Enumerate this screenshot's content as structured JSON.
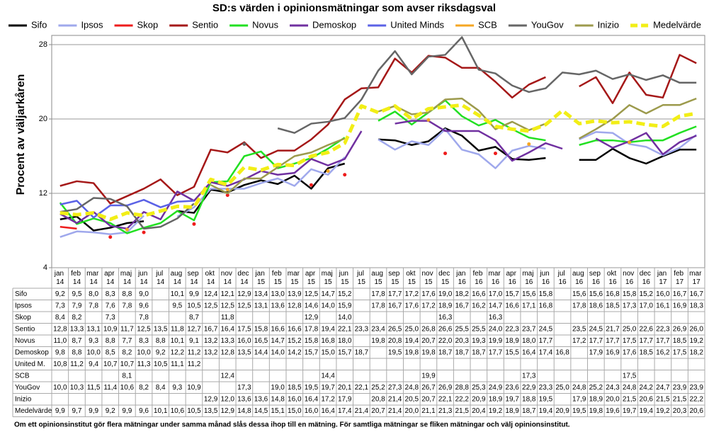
{
  "chart_data": {
    "type": "line",
    "title": "SD:s värden i opinionsmätningar som avser riksdagsval",
    "y_label": "Procent av väljarkåren",
    "footnote": "Om ett opinionsinstitut gör flera mätningar under samma månad slås dessa ihop till en mätning. För samtliga mätningar se fliken mätningar och välj opinionsinstitut.",
    "legend": "top",
    "grid": true,
    "ylim": [
      4,
      28
    ],
    "yticks": [
      4,
      12,
      20,
      28
    ],
    "categories": [
      "jan 14",
      "feb 14",
      "mar 14",
      "apr 14",
      "maj 14",
      "jun 14",
      "jul 14",
      "aug 14",
      "sep 14",
      "okt 14",
      "nov 14",
      "dec 14",
      "jan 15",
      "feb 15",
      "mar 15",
      "apr 15",
      "maj 15",
      "jun 15",
      "jul 15",
      "aug 15",
      "sep 15",
      "okt 15",
      "nov 15",
      "dec 15",
      "jan 16",
      "feb 16",
      "mar 16",
      "apr 16",
      "maj 16",
      "jun 16",
      "jul 16",
      "aug 16",
      "sep 16",
      "okt 16",
      "nov 16",
      "dec 16",
      "jan 17",
      "feb 17",
      "mar 17"
    ],
    "table_row_labels": [
      "Sifo",
      "Ipsos",
      "Skop",
      "Sentio",
      "Novus",
      "Demoskop",
      "United M.",
      "SCB",
      "YouGov",
      "Inizio",
      "Medelvärde"
    ],
    "series": [
      {
        "name": "Sifo",
        "color": "#000000",
        "values": [
          9.2,
          9.5,
          8.0,
          8.3,
          8.8,
          9.0,
          null,
          10.1,
          9.9,
          12.4,
          12.1,
          12.9,
          13.4,
          13.0,
          13.9,
          12.5,
          14.7,
          15.2,
          null,
          17.8,
          17.7,
          17.2,
          17.6,
          19.0,
          18.2,
          16.6,
          17.0,
          15.7,
          15.6,
          15.8,
          null,
          15.6,
          15.6,
          16.8,
          15.8,
          15.2,
          16.0,
          16.7,
          16.7
        ],
        "value_labels": [
          "9,2",
          "9,5",
          "8,0",
          "8,3",
          "8,8",
          "9,0",
          null,
          "10,1",
          "9,9",
          "12,4",
          "12,1",
          "12,9",
          "13,4",
          "13,0",
          "13,9",
          "12,5",
          "14,7",
          "15,2",
          null,
          "17,8",
          "17,7",
          "17,2",
          "17,6",
          "19,0",
          "18,2",
          "16,6",
          "17,0",
          "15,7",
          "15,6",
          "15,8",
          null,
          "15,6",
          "15,6",
          "16,8",
          "15,8",
          "15,2",
          "16,0",
          "16,7",
          "16,7"
        ]
      },
      {
        "name": "Ipsos",
        "color": "#9fa8ec",
        "values": [
          7.3,
          7.9,
          7.8,
          7.6,
          7.8,
          9.6,
          null,
          9.5,
          10.5,
          12.5,
          12.5,
          12.5,
          13.1,
          13.6,
          12.8,
          14.6,
          14.0,
          15.9,
          null,
          17.8,
          16.7,
          17.6,
          17.2,
          18.9,
          16.7,
          16.2,
          14.7,
          16.6,
          17.1,
          16.8,
          null,
          17.8,
          18.6,
          18.5,
          17.3,
          17.0,
          16.1,
          16.9,
          18.3
        ],
        "value_labels": [
          "7,3",
          "7,9",
          "7,8",
          "7,6",
          "7,8",
          "9,6",
          null,
          "9,5",
          "10,5",
          "12,5",
          "12,5",
          "12,5",
          "13,1",
          "13,6",
          "12,8",
          "14,6",
          "14,0",
          "15,9",
          null,
          "17,8",
          "16,7",
          "17,6",
          "17,2",
          "18,9",
          "16,7",
          "16,2",
          "14,7",
          "16,6",
          "17,1",
          "16,8",
          null,
          "17,8",
          "18,6",
          "18,5",
          "17,3",
          "17,0",
          "16,1",
          "16,9",
          "18,3"
        ]
      },
      {
        "name": "Skop",
        "color": "#ee1c1c",
        "values": [
          8.4,
          8.2,
          null,
          7.3,
          null,
          7.8,
          null,
          null,
          8.7,
          null,
          11.8,
          null,
          null,
          null,
          null,
          12.9,
          null,
          14.0,
          null,
          null,
          null,
          null,
          null,
          16.3,
          null,
          null,
          16.3,
          null,
          null,
          null,
          null,
          null,
          null,
          null,
          null,
          null,
          null,
          null,
          null
        ],
        "value_labels": [
          "8,4",
          "8,2",
          null,
          "7,3",
          null,
          "7,8",
          null,
          null,
          "8,7",
          null,
          "11,8",
          null,
          null,
          null,
          null,
          "12,9",
          null,
          "14,0",
          null,
          null,
          null,
          null,
          null,
          "16,3",
          null,
          null,
          "16,3",
          null,
          null,
          null,
          null,
          null,
          null,
          null,
          null,
          null,
          null,
          null,
          null
        ]
      },
      {
        "name": "Sentio",
        "color": "#a51818",
        "values": [
          12.8,
          13.3,
          13.1,
          10.9,
          11.7,
          12.5,
          13.5,
          11.8,
          12.7,
          16.7,
          16.4,
          17.5,
          15.8,
          16.6,
          16.6,
          17.8,
          19.4,
          22.1,
          23.3,
          23.4,
          26.5,
          25.0,
          26.8,
          26.6,
          25.5,
          25.5,
          24.0,
          22.3,
          23.7,
          24.5,
          null,
          23.5,
          24.5,
          21.7,
          25.0,
          22.6,
          22.3,
          26.9,
          26.0
        ],
        "value_labels": [
          "12,8",
          "13,3",
          "13,1",
          "10,9",
          "11,7",
          "12,5",
          "13,5",
          "11,8",
          "12,7",
          "16,7",
          "16,4",
          "17,5",
          "15,8",
          "16,6",
          "16,6",
          "17,8",
          "19,4",
          "22,1",
          "23,3",
          "23,4",
          "26,5",
          "25,0",
          "26,8",
          "26,6",
          "25,5",
          "25,5",
          "24,0",
          "22,3",
          "23,7",
          "24,5",
          null,
          "23,5",
          "24,5",
          "21,7",
          "25,0",
          "22,6",
          "22,3",
          "26,9",
          "26,0"
        ]
      },
      {
        "name": "Novus",
        "color": "#22e022",
        "values": [
          11.0,
          8.7,
          9.3,
          8.8,
          7.7,
          8.3,
          8.8,
          10.1,
          9.1,
          13.2,
          13.3,
          16.0,
          16.5,
          14.7,
          15.2,
          15.8,
          16.8,
          18.0,
          null,
          19.8,
          20.8,
          19.4,
          20.7,
          22.0,
          20.3,
          19.3,
          19.9,
          18.9,
          18.0,
          17.7,
          null,
          17.2,
          17.7,
          17.7,
          17.5,
          17.7,
          17.7,
          18.5,
          19.2
        ],
        "value_labels": [
          "11,0",
          "8,7",
          "9,3",
          "8,8",
          "7,7",
          "8,3",
          "8,8",
          "10,1",
          "9,1",
          "13,2",
          "13,3",
          "16,0",
          "16,5",
          "14,7",
          "15,2",
          "15,8",
          "16,8",
          "18,0",
          null,
          "19,8",
          "20,8",
          "19,4",
          "20,7",
          "22,0",
          "20,3",
          "19,3",
          "19,9",
          "18,9",
          "18,0",
          "17,7",
          null,
          "17,2",
          "17,7",
          "17,7",
          "17,5",
          "17,7",
          "17,7",
          "18,5",
          "19,2"
        ]
      },
      {
        "name": "Demoskop",
        "color": "#7030a0",
        "values": [
          9.8,
          8.8,
          10.0,
          8.5,
          8.2,
          10.0,
          9.2,
          12.2,
          11.2,
          13.2,
          12.8,
          13.5,
          14.4,
          14.0,
          14.2,
          15.7,
          15.0,
          15.7,
          18.7,
          null,
          19.5,
          19.8,
          19.8,
          18.7,
          18.7,
          18.7,
          17.7,
          15.5,
          16.4,
          17.4,
          16.8,
          null,
          17.9,
          16.9,
          17.6,
          18.5,
          16.2,
          17.5,
          18.2
        ],
        "value_labels": [
          "9,8",
          "8,8",
          "10,0",
          "8,5",
          "8,2",
          "10,0",
          "9,2",
          "12,2",
          "11,2",
          "13,2",
          "12,8",
          "13,5",
          "14,4",
          "14,0",
          "14,2",
          "15,7",
          "15,0",
          "15,7",
          "18,7",
          null,
          "19,5",
          "19,8",
          "19,8",
          "18,7",
          "18,7",
          "18,7",
          "17,7",
          "15,5",
          "16,4",
          "17,4",
          "16,8",
          null,
          "17,9",
          "16,9",
          "17,6",
          "18,5",
          "16,2",
          "17,5",
          "18,2"
        ]
      },
      {
        "name": "United Minds",
        "color": "#5b62e6",
        "values": [
          10.8,
          11.2,
          9.4,
          10.7,
          10.7,
          11.3,
          10.5,
          11.1,
          11.2,
          null,
          null,
          null,
          null,
          null,
          null,
          null,
          null,
          null,
          null,
          null,
          null,
          null,
          null,
          null,
          null,
          null,
          null,
          null,
          null,
          null,
          null,
          null,
          null,
          null,
          null,
          null,
          null,
          null,
          null
        ],
        "value_labels": [
          "10,8",
          "11,2",
          "9,4",
          "10,7",
          "10,7",
          "11,3",
          "10,5",
          "11,1",
          "11,2",
          null,
          null,
          null,
          null,
          null,
          null,
          null,
          null,
          null,
          null,
          null,
          null,
          null,
          null,
          null,
          null,
          null,
          null,
          null,
          null,
          null,
          null,
          null,
          null,
          null,
          null,
          null,
          null,
          null,
          null
        ]
      },
      {
        "name": "SCB",
        "color": "#f5a623",
        "values": [
          null,
          null,
          null,
          null,
          8.1,
          null,
          null,
          null,
          null,
          null,
          12.4,
          null,
          null,
          null,
          null,
          null,
          14.4,
          null,
          null,
          null,
          null,
          null,
          19.9,
          null,
          null,
          null,
          null,
          null,
          17.3,
          null,
          null,
          null,
          null,
          null,
          17.5,
          null,
          null,
          null,
          null
        ],
        "value_labels": [
          null,
          null,
          null,
          null,
          "8,1",
          null,
          null,
          null,
          null,
          null,
          "12,4",
          null,
          null,
          null,
          null,
          null,
          "14,4",
          null,
          null,
          null,
          null,
          null,
          "19,9",
          null,
          null,
          null,
          null,
          null,
          "17,3",
          null,
          null,
          null,
          null,
          null,
          "17,5",
          null,
          null,
          null,
          null
        ]
      },
      {
        "name": "YouGov",
        "color": "#666666",
        "values": [
          10.0,
          10.3,
          11.5,
          11.4,
          10.6,
          8.2,
          8.4,
          9.3,
          10.9,
          null,
          null,
          17.3,
          null,
          19.0,
          18.5,
          19.5,
          19.7,
          20.1,
          22.1,
          25.2,
          27.3,
          24.8,
          26.7,
          26.9,
          28.8,
          25.3,
          24.9,
          23.6,
          22.9,
          23.3,
          25.0,
          24.8,
          25.2,
          24.3,
          24.8,
          24.2,
          24.7,
          23.9,
          23.9
        ],
        "value_labels": [
          "10,0",
          "10,3",
          "11,5",
          "11,4",
          "10,6",
          "8,2",
          "8,4",
          "9,3",
          "10,9",
          null,
          null,
          "17,3",
          null,
          "19,0",
          "18,5",
          "19,5",
          "19,7",
          "20,1",
          "22,1",
          "25,2",
          "27,3",
          "24,8",
          "26,7",
          "26,9",
          "28,8",
          "25,3",
          "24,9",
          "23,6",
          "22,9",
          "23,3",
          "25,0",
          "24,8",
          "25,2",
          "24,3",
          "24,8",
          "24,2",
          "24,7",
          "23,9",
          "23,9"
        ]
      },
      {
        "name": "Inizio",
        "color": "#9c9a4c",
        "values": [
          null,
          null,
          null,
          null,
          null,
          null,
          null,
          null,
          null,
          12.9,
          12.0,
          13.6,
          13.6,
          14.8,
          16.0,
          16.4,
          17.2,
          17.9,
          null,
          20.8,
          21.4,
          20.5,
          20.7,
          22.1,
          22.2,
          20.9,
          18.9,
          19.7,
          18.8,
          19.5,
          null,
          17.9,
          18.9,
          20.0,
          21.5,
          20.6,
          21.5,
          21.5,
          22.2
        ],
        "value_labels": [
          null,
          null,
          null,
          null,
          null,
          null,
          null,
          null,
          null,
          "12,9",
          "12,0",
          "13,6",
          "13,6",
          "14,8",
          "16,0",
          "16,4",
          "17,2",
          "17,9",
          null,
          "20,8",
          "21,4",
          "20,5",
          "20,7",
          "22,1",
          "22,2",
          "20,9",
          "18,9",
          "19,7",
          "18,8",
          "19,5",
          null,
          "17,9",
          "18,9",
          "20,0",
          "21,5",
          "20,6",
          "21,5",
          "21,5",
          "22,2"
        ]
      },
      {
        "name": "Medelvärde",
        "color": "#f2ee16",
        "dashed": true,
        "values": [
          9.9,
          9.7,
          9.9,
          9.2,
          9.9,
          9.6,
          10.1,
          10.6,
          10.5,
          13.5,
          12.9,
          14.8,
          14.5,
          15.1,
          15.0,
          16.0,
          16.4,
          17.4,
          21.4,
          20.7,
          21.4,
          20.0,
          21.1,
          21.3,
          21.5,
          20.4,
          19.2,
          18.9,
          18.7,
          19.4,
          20.9,
          19.5,
          19.8,
          19.6,
          19.7,
          19.4,
          19.2,
          20.3,
          20.6
        ],
        "value_labels": [
          "9,9",
          "9,7",
          "9,9",
          "9,2",
          "9,9",
          "9,6",
          "10,1",
          "10,6",
          "10,5",
          "13,5",
          "12,9",
          "14,8",
          "14,5",
          "15,1",
          "15,0",
          "16,0",
          "16,4",
          "17,4",
          "21,4",
          "20,7",
          "21,4",
          "20,0",
          "21,1",
          "21,3",
          "21,5",
          "20,4",
          "19,2",
          "18,9",
          "18,7",
          "19,4",
          "20,9",
          "19,5",
          "19,8",
          "19,6",
          "19,7",
          "19,4",
          "19,2",
          "20,3",
          "20,6"
        ]
      }
    ]
  }
}
